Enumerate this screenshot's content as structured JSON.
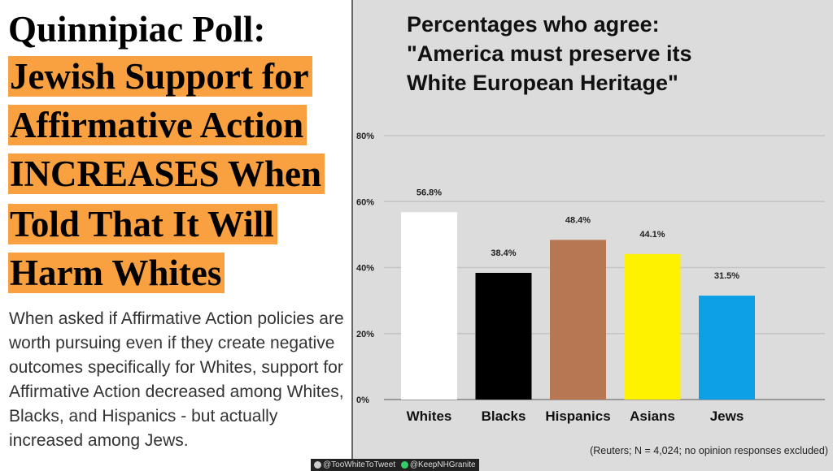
{
  "left": {
    "title": "Quinnipiac Poll:",
    "headline_lines": [
      "Jewish Support for",
      "Affirmative Action",
      "INCREASES When",
      "Told That It Will",
      "Harm Whites"
    ],
    "body": "When asked if Affirmative Action policies are worth pursuing even if they create negative outcomes specifically for Whites, support for Affirmative Action decreased among Whites, Blacks, and Hispanics - but actually increased among Jews.",
    "highlight_color": "#f9a040"
  },
  "chart_data": {
    "type": "bar",
    "title_lines": [
      "Percentages who agree:",
      "\"America must preserve its",
      "White European Heritage\""
    ],
    "categories": [
      "Whites",
      "Blacks",
      "Hispanics",
      "Asians",
      "Jews"
    ],
    "values": [
      56.8,
      38.4,
      48.4,
      44.1,
      31.5
    ],
    "data_labels": [
      "56.8%",
      "38.4%",
      "48.4%",
      "44.1%",
      "31.5%"
    ],
    "colors": [
      "#ffffff",
      "#000000",
      "#b87753",
      "#fff200",
      "#0ea0e6"
    ],
    "yticks": [
      0,
      20,
      40,
      60,
      80
    ],
    "ytick_labels": [
      "0%",
      "20%",
      "40%",
      "60%",
      "80%"
    ],
    "ylim": [
      0,
      80
    ],
    "grid": true,
    "xlabel": "",
    "ylabel": "",
    "source": "(Reuters; N = 4,024; no opinion responses excluded)"
  },
  "credits": {
    "twitter": "@TooWhiteToTweet",
    "other": "@KeepNHGranite"
  }
}
